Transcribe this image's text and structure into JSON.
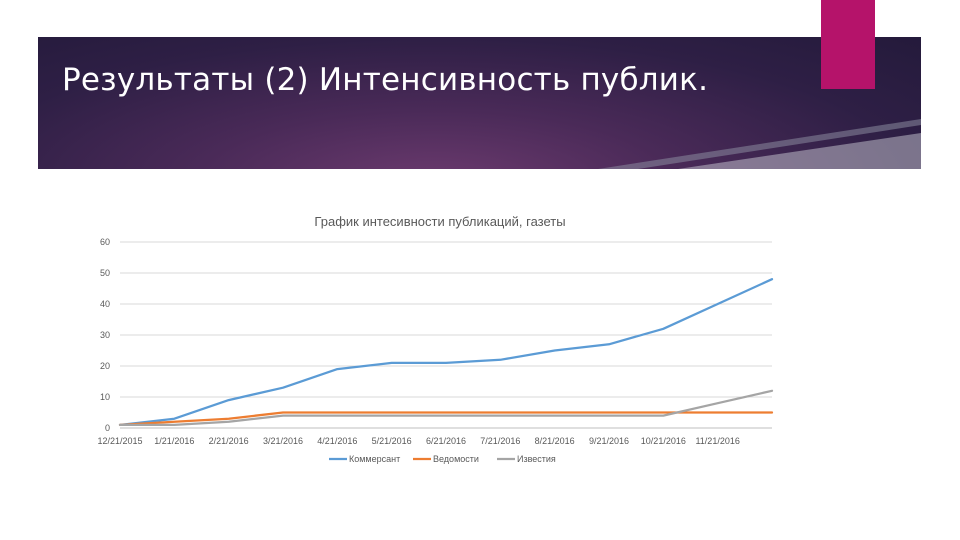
{
  "slide": {
    "title": "Результаты (2) Интенсивность публик.",
    "accent_color": "#b5136a"
  },
  "chart_data": {
    "type": "line",
    "title": "График интесивности публикаций, газеты",
    "xlabel": "",
    "ylabel": "",
    "ylim": [
      0,
      60
    ],
    "yticks": [
      "0",
      "10",
      "20",
      "30",
      "40",
      "50",
      "60"
    ],
    "grid": true,
    "legend_position": "bottom",
    "x_tick_labels": [
      "12/21/2015",
      "1/21/2016",
      "2/21/2016",
      "3/21/2016",
      "4/21/2016",
      "5/21/2016",
      "6/21/2016",
      "7/21/2016",
      "8/21/2016",
      "9/21/2016",
      "10/21/2016",
      "11/21/2016"
    ],
    "x": [
      "2015-12-21",
      "2016-01-21",
      "2016-02-21",
      "2016-03-21",
      "2016-04-21",
      "2016-05-21",
      "2016-06-21",
      "2016-07-21",
      "2016-08-21",
      "2016-09-21",
      "2016-10-21",
      "2016-11-21",
      "2016-12-21"
    ],
    "series": [
      {
        "name": "Коммерсант",
        "color": "#5b9bd5",
        "values": [
          1,
          3,
          9,
          13,
          19,
          21,
          21,
          22,
          25,
          27,
          32,
          40,
          48
        ]
      },
      {
        "name": "Ведомости",
        "color": "#ed7d31",
        "values": [
          1,
          2,
          3,
          5,
          5,
          5,
          5,
          5,
          5,
          5,
          5,
          5,
          5
        ]
      },
      {
        "name": "Известия",
        "color": "#a5a5a5",
        "values": [
          1,
          1,
          2,
          4,
          4,
          4,
          4,
          4,
          4,
          4,
          4,
          8,
          12
        ]
      }
    ]
  }
}
